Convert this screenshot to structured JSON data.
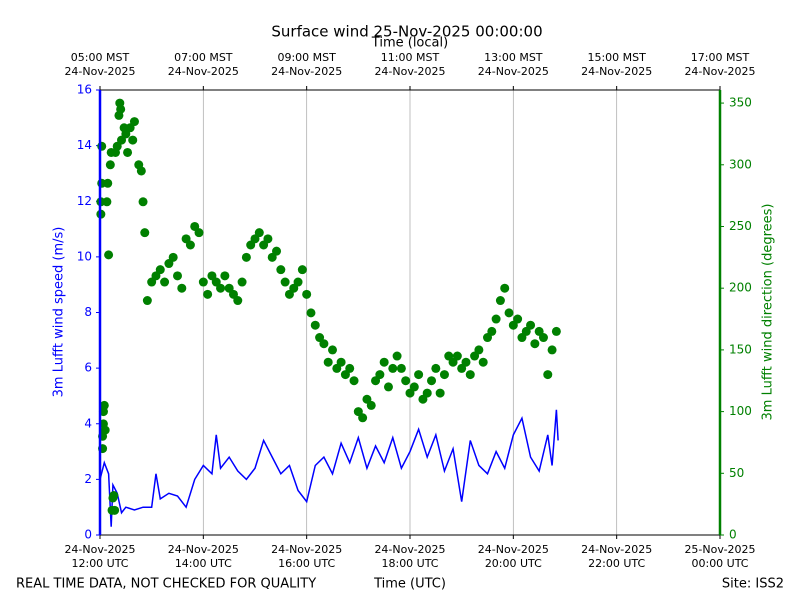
{
  "chart_data": {
    "type": "line",
    "title": "Surface wind 25-Nov-2025 00:00:00",
    "xlabel": "Time (UTC)",
    "x2label": "Time (local)",
    "ylabel": "3m Lufft wind speed (m/s)",
    "y2label": "3m Lufft wind direction (degrees)",
    "note_left": "REAL TIME DATA, NOT CHECKED FOR QUALITY",
    "note_right": "Site: ISS2",
    "grid": true,
    "xlim": [
      "2025-11-24 12:00",
      "2025-11-25 00:00"
    ],
    "xticks": [
      {
        "value": "2025-11-24 12:00",
        "label": "24-Nov-2025\n12:00 UTC"
      },
      {
        "value": "2025-11-24 14:00",
        "label": "24-Nov-2025\n14:00 UTC"
      },
      {
        "value": "2025-11-24 16:00",
        "label": "24-Nov-2025\n16:00 UTC"
      },
      {
        "value": "2025-11-24 18:00",
        "label": "24-Nov-2025\n18:00 UTC"
      },
      {
        "value": "2025-11-24 20:00",
        "label": "24-Nov-2025\n20:00 UTC"
      },
      {
        "value": "2025-11-24 22:00",
        "label": "24-Nov-2025\n22:00 UTC"
      },
      {
        "value": "2025-11-25 00:00",
        "label": "25-Nov-2025\n00:00 UTC"
      }
    ],
    "x2ticks": [
      {
        "value": "2025-11-24 12:00",
        "label": "05:00 MST\n24-Nov-2025"
      },
      {
        "value": "2025-11-24 14:00",
        "label": "07:00 MST\n24-Nov-2025"
      },
      {
        "value": "2025-11-24 16:00",
        "label": "09:00 MST\n24-Nov-2025"
      },
      {
        "value": "2025-11-24 18:00",
        "label": "11:00 MST\n24-Nov-2025"
      },
      {
        "value": "2025-11-24 20:00",
        "label": "13:00 MST\n24-Nov-2025"
      },
      {
        "value": "2025-11-24 22:00",
        "label": "15:00 MST\n24-Nov-2025"
      },
      {
        "value": "2025-11-25 00:00",
        "label": "17:00 MST\n24-Nov-2025"
      }
    ],
    "ylim": [
      0,
      16
    ],
    "yticks": [
      0,
      2,
      4,
      6,
      8,
      10,
      12,
      14,
      16
    ],
    "y2lim": [
      0,
      360.6
    ],
    "y2ticks": [
      0,
      50,
      100,
      150,
      200,
      250,
      300,
      350
    ],
    "series": [
      {
        "type": "line",
        "color": "#0000ff",
        "x": [
          "2025-11-24 12:00",
          "2025-11-24 12:05",
          "2025-11-24 12:10",
          "2025-11-24 12:13",
          "2025-11-24 12:15",
          "2025-11-24 12:20",
          "2025-11-24 12:25",
          "2025-11-24 12:30",
          "2025-11-24 12:40",
          "2025-11-24 12:50",
          "2025-11-24 13:00",
          "2025-11-24 13:05",
          "2025-11-24 13:10",
          "2025-11-24 13:20",
          "2025-11-24 13:30",
          "2025-11-24 13:40",
          "2025-11-24 13:50",
          "2025-11-24 14:00",
          "2025-11-24 14:10",
          "2025-11-24 14:15",
          "2025-11-24 14:20",
          "2025-11-24 14:30",
          "2025-11-24 14:40",
          "2025-11-24 14:50",
          "2025-11-24 15:00",
          "2025-11-24 15:10",
          "2025-11-24 15:20",
          "2025-11-24 15:30",
          "2025-11-24 15:40",
          "2025-11-24 15:50",
          "2025-11-24 16:00",
          "2025-11-24 16:10",
          "2025-11-24 16:20",
          "2025-11-24 16:30",
          "2025-11-24 16:40",
          "2025-11-24 16:50",
          "2025-11-24 17:00",
          "2025-11-24 17:10",
          "2025-11-24 17:20",
          "2025-11-24 17:30",
          "2025-11-24 17:40",
          "2025-11-24 17:50",
          "2025-11-24 18:00",
          "2025-11-24 18:10",
          "2025-11-24 18:20",
          "2025-11-24 18:30",
          "2025-11-24 18:40",
          "2025-11-24 18:50",
          "2025-11-24 19:00",
          "2025-11-24 19:10",
          "2025-11-24 19:20",
          "2025-11-24 19:30",
          "2025-11-24 19:40",
          "2025-11-24 19:50",
          "2025-11-24 20:00",
          "2025-11-24 20:10",
          "2025-11-24 20:20",
          "2025-11-24 20:30",
          "2025-11-24 20:40",
          "2025-11-24 20:45",
          "2025-11-24 20:50",
          "2025-11-24 20:52"
        ],
        "values": [
          2.0,
          2.6,
          2.2,
          0.3,
          1.8,
          1.5,
          0.8,
          1.0,
          0.9,
          1.0,
          1.0,
          2.2,
          1.3,
          1.5,
          1.4,
          1.0,
          2.0,
          2.5,
          2.2,
          3.6,
          2.4,
          2.8,
          2.3,
          2.0,
          2.4,
          3.4,
          2.8,
          2.2,
          2.5,
          1.6,
          1.2,
          2.5,
          2.8,
          2.2,
          3.3,
          2.6,
          3.5,
          2.4,
          3.2,
          2.6,
          3.5,
          2.4,
          3.0,
          3.8,
          2.8,
          3.6,
          2.3,
          3.1,
          1.2,
          3.4,
          2.5,
          2.2,
          3.0,
          2.4,
          3.6,
          4.2,
          2.8,
          2.3,
          3.6,
          2.5,
          4.5,
          3.4
        ]
      },
      {
        "type": "scatter",
        "color": "#008000",
        "axis": "y2",
        "x": [
          "2025-11-24 12:01",
          "2025-11-24 12:01",
          "2025-11-24 12:02",
          "2025-11-24 12:02",
          "2025-11-24 12:03",
          "2025-11-24 12:03",
          "2025-11-24 12:04",
          "2025-11-24 12:04",
          "2025-11-24 12:05",
          "2025-11-24 12:06",
          "2025-11-24 12:08",
          "2025-11-24 12:09",
          "2025-11-24 12:10",
          "2025-11-24 12:12",
          "2025-11-24 12:13",
          "2025-11-24 12:14",
          "2025-11-24 12:15",
          "2025-11-24 12:16",
          "2025-11-24 12:17",
          "2025-11-24 12:18",
          "2025-11-24 12:20",
          "2025-11-24 12:22",
          "2025-11-24 12:23",
          "2025-11-24 12:24",
          "2025-11-24 12:25",
          "2025-11-24 12:28",
          "2025-11-24 12:30",
          "2025-11-24 12:32",
          "2025-11-24 12:35",
          "2025-11-24 12:38",
          "2025-11-24 12:40",
          "2025-11-24 12:45",
          "2025-11-24 12:48",
          "2025-11-24 12:50",
          "2025-11-24 12:52",
          "2025-11-24 12:55",
          "2025-11-24 13:00",
          "2025-11-24 13:05",
          "2025-11-24 13:10",
          "2025-11-24 13:15",
          "2025-11-24 13:20",
          "2025-11-24 13:25",
          "2025-11-24 13:30",
          "2025-11-24 13:35",
          "2025-11-24 13:40",
          "2025-11-24 13:45",
          "2025-11-24 13:50",
          "2025-11-24 13:55",
          "2025-11-24 14:00",
          "2025-11-24 14:05",
          "2025-11-24 14:10",
          "2025-11-24 14:15",
          "2025-11-24 14:20",
          "2025-11-24 14:25",
          "2025-11-24 14:30",
          "2025-11-24 14:35",
          "2025-11-24 14:40",
          "2025-11-24 14:45",
          "2025-11-24 14:50",
          "2025-11-24 14:55",
          "2025-11-24 15:00",
          "2025-11-24 15:05",
          "2025-11-24 15:10",
          "2025-11-24 15:15",
          "2025-11-24 15:20",
          "2025-11-24 15:25",
          "2025-11-24 15:30",
          "2025-11-24 15:35",
          "2025-11-24 15:40",
          "2025-11-24 15:45",
          "2025-11-24 15:50",
          "2025-11-24 15:55",
          "2025-11-24 16:00",
          "2025-11-24 16:05",
          "2025-11-24 16:10",
          "2025-11-24 16:15",
          "2025-11-24 16:20",
          "2025-11-24 16:25",
          "2025-11-24 16:30",
          "2025-11-24 16:35",
          "2025-11-24 16:40",
          "2025-11-24 16:45",
          "2025-11-24 16:50",
          "2025-11-24 16:55",
          "2025-11-24 17:00",
          "2025-11-24 17:05",
          "2025-11-24 17:10",
          "2025-11-24 17:15",
          "2025-11-24 17:20",
          "2025-11-24 17:25",
          "2025-11-24 17:30",
          "2025-11-24 17:35",
          "2025-11-24 17:40",
          "2025-11-24 17:45",
          "2025-11-24 17:50",
          "2025-11-24 17:55",
          "2025-11-24 18:00",
          "2025-11-24 18:05",
          "2025-11-24 18:10",
          "2025-11-24 18:15",
          "2025-11-24 18:20",
          "2025-11-24 18:25",
          "2025-11-24 18:30",
          "2025-11-24 18:35",
          "2025-11-24 18:40",
          "2025-11-24 18:45",
          "2025-11-24 18:50",
          "2025-11-24 18:55",
          "2025-11-24 19:00",
          "2025-11-24 19:05",
          "2025-11-24 19:10",
          "2025-11-24 19:15",
          "2025-11-24 19:20",
          "2025-11-24 19:25",
          "2025-11-24 19:30",
          "2025-11-24 19:35",
          "2025-11-24 19:40",
          "2025-11-24 19:45",
          "2025-11-24 19:50",
          "2025-11-24 19:55",
          "2025-11-24 20:00",
          "2025-11-24 20:05",
          "2025-11-24 20:10",
          "2025-11-24 20:15",
          "2025-11-24 20:20",
          "2025-11-24 20:25",
          "2025-11-24 20:30",
          "2025-11-24 20:35",
          "2025-11-24 20:40",
          "2025-11-24 20:45",
          "2025-11-24 20:50"
        ],
        "values": [
          270,
          260,
          315,
          285,
          70,
          80,
          100,
          90,
          105,
          85,
          270,
          285,
          227,
          300,
          310,
          20,
          30,
          32,
          20,
          310,
          315,
          340,
          350,
          345,
          320,
          330,
          325,
          310,
          330,
          320,
          335,
          300,
          295,
          270,
          245,
          190,
          205,
          210,
          215,
          205,
          220,
          225,
          210,
          200,
          240,
          235,
          250,
          245,
          205,
          195,
          210,
          205,
          200,
          210,
          200,
          195,
          190,
          205,
          225,
          235,
          240,
          245,
          235,
          240,
          225,
          230,
          215,
          205,
          195,
          200,
          205,
          215,
          195,
          180,
          170,
          160,
          155,
          140,
          150,
          135,
          140,
          130,
          135,
          125,
          100,
          95,
          110,
          105,
          125,
          130,
          140,
          120,
          135,
          145,
          135,
          125,
          115,
          120,
          130,
          110,
          115,
          125,
          135,
          115,
          130,
          145,
          140,
          145,
          135,
          140,
          130,
          145,
          150,
          140,
          160,
          165,
          175,
          190,
          200,
          180,
          170,
          175,
          160,
          165,
          170,
          155,
          165,
          160,
          130,
          150,
          165
        ]
      }
    ]
  }
}
